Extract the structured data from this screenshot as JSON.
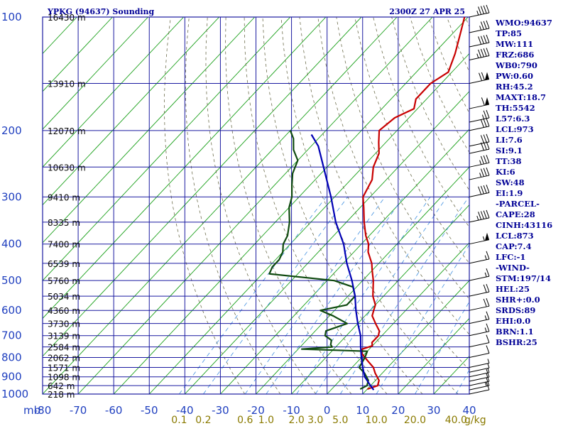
{
  "header": {
    "station": "YPKG (94637) Sounding",
    "valid_time": "2300Z 27 APR 25"
  },
  "colors": {
    "background": "#ffffff",
    "grid": "#1a1aa0",
    "isotherm_skew": "#1aa01a",
    "dry_adiabat": "#6e6e4e",
    "mixing_ratio": "#3f8fe0",
    "temperature": "#c80000",
    "dewpoint": "#0f4a0f",
    "parcel": "#0000b4",
    "text": "#000096"
  },
  "mb_label": "mb",
  "mixing_unit": "g/kg",
  "indices": [
    "WMO:94637",
    "TP:85",
    "MW:111",
    "FRZ:686",
    "WB0:790",
    "PW:0.60",
    "RH:45.2",
    "MAXT:18.7",
    "TH:5542",
    "L57:6.3",
    "LCL:973",
    "LI:7.6",
    "SI:9.1",
    "TT:38",
    "KI:6",
    "SW:48",
    "EI:1.9",
    "-PARCEL-",
    "CAPE:28",
    "CINH:43116",
    "LCL:873",
    "CAP:7.4",
    "LFC:-1",
    "-WIND-",
    "STM:197/14",
    "HEL:25",
    "SHR+:0.0",
    "SRDS:89",
    "EHI:0.0",
    "BRN:1.1",
    "BSHR:25"
  ],
  "chart_data": {
    "type": "line",
    "title": "YPKG (94637) Sounding",
    "subtitle": "2300Z 27 APR 25",
    "xlabel": "",
    "ylabel": "mb",
    "xlim": [
      -80,
      40
    ],
    "ylim": [
      1000,
      100
    ],
    "y_scale": "log",
    "grid": true,
    "x_ticks": [
      "-80",
      "-70",
      "-60",
      "-50",
      "-40",
      "-30",
      "-20",
      "-10",
      "0",
      "10",
      "20",
      "30",
      "40"
    ],
    "y_ticks": [
      {
        "p": 100,
        "label": "100"
      },
      {
        "p": 200,
        "label": "200"
      },
      {
        "p": 300,
        "label": "300"
      },
      {
        "p": 400,
        "label": "400"
      },
      {
        "p": 500,
        "label": "500"
      },
      {
        "p": 600,
        "label": "600"
      },
      {
        "p": 700,
        "label": "700"
      },
      {
        "p": 800,
        "label": "800"
      },
      {
        "p": 900,
        "label": "900"
      },
      {
        "p": 1000,
        "label": "1000"
      }
    ],
    "height_labels": [
      {
        "p": 100,
        "label": "16430 m"
      },
      {
        "p": 150,
        "label": "13910 m"
      },
      {
        "p": 200,
        "label": "12070 m"
      },
      {
        "p": 250,
        "label": "10630 m"
      },
      {
        "p": 300,
        "label": "9410 m"
      },
      {
        "p": 350,
        "label": "8335 m"
      },
      {
        "p": 400,
        "label": "7400 m"
      },
      {
        "p": 450,
        "label": "6539 m"
      },
      {
        "p": 500,
        "label": "5760 m"
      },
      {
        "p": 550,
        "label": "5034 m"
      },
      {
        "p": 600,
        "label": "4360 m"
      },
      {
        "p": 650,
        "label": "3730 m"
      },
      {
        "p": 700,
        "label": "3139 m"
      },
      {
        "p": 750,
        "label": "2584 m"
      },
      {
        "p": 800,
        "label": "2062 m"
      },
      {
        "p": 850,
        "label": "1571 m"
      },
      {
        "p": 900,
        "label": "1098 m"
      },
      {
        "p": 950,
        "label": "642 m"
      },
      {
        "p": 1000,
        "label": "218 m"
      }
    ],
    "mixing_ratio_labels": [
      "0.1",
      "0.2",
      "0.6",
      "1.0",
      "2.0",
      "3.0",
      "5.0",
      "10.0",
      "20.0",
      "40.0"
    ],
    "series": [
      {
        "key": "temperature",
        "color": "#c80000",
        "points": [
          [
            970,
            10
          ],
          [
            950,
            12
          ],
          [
            920,
            11
          ],
          [
            880,
            8
          ],
          [
            850,
            6
          ],
          [
            820,
            3
          ],
          [
            800,
            1
          ],
          [
            780,
            -1
          ],
          [
            760,
            -2
          ],
          [
            745,
            0
          ],
          [
            730,
            -1
          ],
          [
            700,
            -1
          ],
          [
            680,
            -2
          ],
          [
            650,
            -5
          ],
          [
            620,
            -8
          ],
          [
            600,
            -9
          ],
          [
            580,
            -10
          ],
          [
            550,
            -13
          ],
          [
            500,
            -17
          ],
          [
            470,
            -20
          ],
          [
            450,
            -22
          ],
          [
            420,
            -26
          ],
          [
            400,
            -28
          ],
          [
            380,
            -31
          ],
          [
            350,
            -35
          ],
          [
            320,
            -39
          ],
          [
            300,
            -42
          ],
          [
            270,
            -44
          ],
          [
            250,
            -47
          ],
          [
            230,
            -49
          ],
          [
            215,
            -52
          ],
          [
            200,
            -55
          ],
          [
            185,
            -54
          ],
          [
            175,
            -51
          ],
          [
            165,
            -53
          ],
          [
            150,
            -53
          ],
          [
            140,
            -51
          ],
          [
            125,
            -54
          ],
          [
            110,
            -58
          ],
          [
            100,
            -61
          ]
        ]
      },
      {
        "key": "dewpoint",
        "color": "#0f4a0f",
        "points": [
          [
            970,
            8
          ],
          [
            950,
            9
          ],
          [
            920,
            8
          ],
          [
            880,
            5
          ],
          [
            850,
            2
          ],
          [
            800,
            1
          ],
          [
            770,
            0
          ],
          [
            760,
            -19
          ],
          [
            750,
            -11
          ],
          [
            740,
            -12
          ],
          [
            720,
            -13
          ],
          [
            700,
            -16
          ],
          [
            680,
            -17
          ],
          [
            650,
            -13
          ],
          [
            620,
            -19
          ],
          [
            600,
            -24
          ],
          [
            580,
            -18
          ],
          [
            550,
            -18
          ],
          [
            520,
            -21
          ],
          [
            500,
            -28
          ],
          [
            480,
            -48
          ],
          [
            460,
            -49
          ],
          [
            440,
            -49
          ],
          [
            420,
            -50
          ],
          [
            400,
            -52
          ],
          [
            380,
            -53
          ],
          [
            350,
            -56
          ],
          [
            320,
            -60
          ],
          [
            300,
            -62
          ],
          [
            280,
            -65
          ],
          [
            260,
            -68
          ],
          [
            240,
            -70
          ],
          [
            225,
            -74
          ],
          [
            210,
            -77
          ],
          [
            200,
            -80
          ]
        ]
      },
      {
        "key": "parcel",
        "color": "#0000b4",
        "points": [
          [
            975,
            12
          ],
          [
            950,
            10
          ],
          [
            900,
            6
          ],
          [
            850,
            3
          ],
          [
            800,
            0
          ],
          [
            750,
            -3
          ],
          [
            700,
            -6
          ],
          [
            650,
            -10
          ],
          [
            600,
            -14
          ],
          [
            550,
            -18
          ],
          [
            500,
            -23
          ],
          [
            450,
            -29
          ],
          [
            400,
            -35
          ],
          [
            350,
            -43
          ],
          [
            300,
            -51
          ],
          [
            250,
            -61
          ],
          [
            220,
            -68
          ],
          [
            205,
            -73
          ]
        ]
      }
    ],
    "wind_profile": [
      {
        "p": 1000,
        "spd": 10
      },
      {
        "p": 975,
        "spd": 15
      },
      {
        "p": 950,
        "spd": 10
      },
      {
        "p": 925,
        "spd": 10
      },
      {
        "p": 900,
        "spd": 5
      },
      {
        "p": 875,
        "spd": 5
      },
      {
        "p": 850,
        "spd": 5
      },
      {
        "p": 800,
        "spd": 10
      },
      {
        "p": 750,
        "spd": 10
      },
      {
        "p": 700,
        "spd": 15
      },
      {
        "p": 650,
        "spd": 15
      },
      {
        "p": 600,
        "spd": 20
      },
      {
        "p": 550,
        "spd": 20
      },
      {
        "p": 500,
        "spd": 15
      },
      {
        "p": 450,
        "spd": 15
      },
      {
        "p": 400,
        "spd": 55
      },
      {
        "p": 350,
        "spd": 45
      },
      {
        "p": 300,
        "spd": 40
      },
      {
        "p": 270,
        "spd": 35
      },
      {
        "p": 250,
        "spd": 35
      },
      {
        "p": 230,
        "spd": 30
      },
      {
        "p": 220,
        "spd": 30
      },
      {
        "p": 200,
        "spd": 30
      },
      {
        "p": 190,
        "spd": 25
      },
      {
        "p": 175,
        "spd": 60
      },
      {
        "p": 150,
        "spd": 70
      },
      {
        "p": 130,
        "spd": 45
      },
      {
        "p": 120,
        "spd": 40
      },
      {
        "p": 110,
        "spd": 35
      },
      {
        "p": 100,
        "spd": 45
      }
    ]
  }
}
